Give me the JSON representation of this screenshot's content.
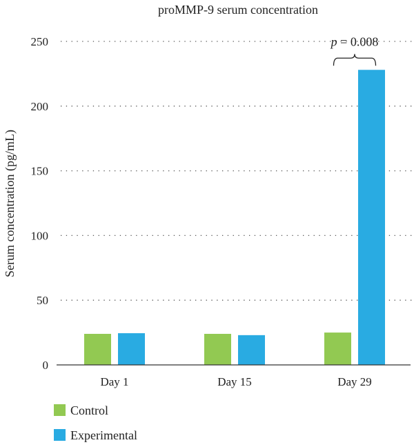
{
  "chart_data": {
    "type": "bar",
    "title": "proMMP-9 serum concentration",
    "xlabel": "",
    "ylabel": "Serum concentration (pg/mL)",
    "categories": [
      "Day 1",
      "Day 15",
      "Day 29"
    ],
    "series": [
      {
        "name": "Control",
        "values": [
          24,
          24,
          25
        ],
        "color": "#92c952"
      },
      {
        "name": "Experimental",
        "values": [
          24.5,
          23,
          228
        ],
        "color": "#29abe2"
      }
    ],
    "ylim": [
      0,
      250
    ],
    "yticks": [
      0,
      50,
      100,
      150,
      200,
      250
    ],
    "grid": true,
    "legend": "bottom-left",
    "annotation": {
      "category": "Day 29",
      "italic": "p",
      "text": " = 0.008"
    }
  }
}
